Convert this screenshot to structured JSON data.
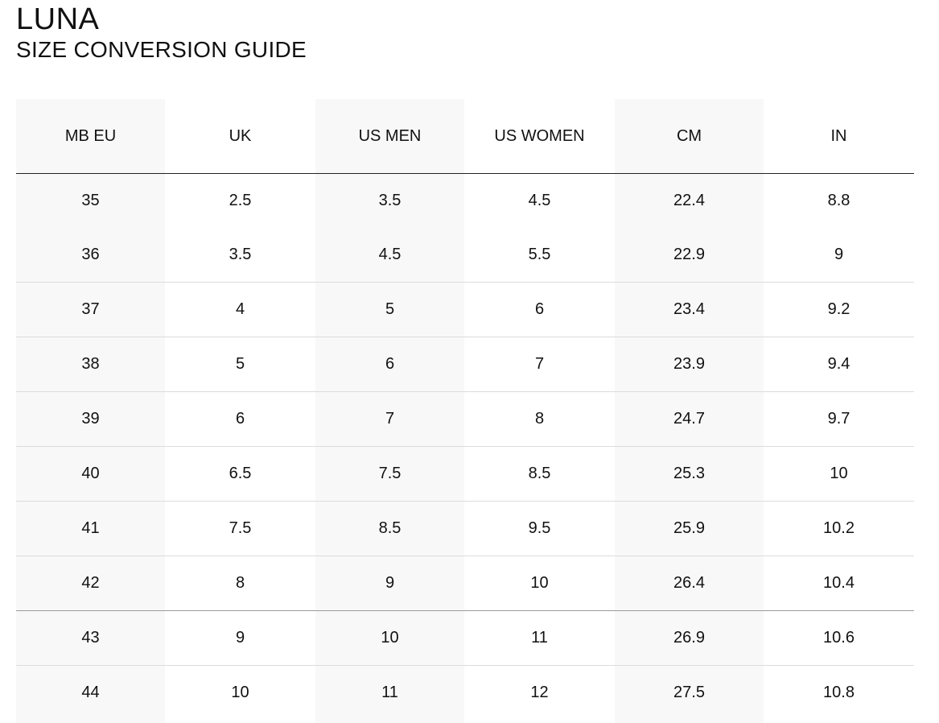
{
  "header": {
    "brand": "LUNA",
    "subtitle": "SIZE CONVERSION GUIDE"
  },
  "table": {
    "columns": [
      "MB EU",
      "UK",
      "US MEN",
      "US WOMEN",
      "CM",
      "IN"
    ],
    "rows": [
      [
        "35",
        "2.5",
        "3.5",
        "4.5",
        "22.4",
        "8.8"
      ],
      [
        "36",
        "3.5",
        "4.5",
        "5.5",
        "22.9",
        "9"
      ],
      [
        "37",
        "4",
        "5",
        "6",
        "23.4",
        "9.2"
      ],
      [
        "38",
        "5",
        "6",
        "7",
        "23.9",
        "9.4"
      ],
      [
        "39",
        "6",
        "7",
        "8",
        "24.7",
        "9.7"
      ],
      [
        "40",
        "6.5",
        "7.5",
        "8.5",
        "25.3",
        "10"
      ],
      [
        "41",
        "7.5",
        "8.5",
        "9.5",
        "25.9",
        "10.2"
      ],
      [
        "42",
        "8",
        "9",
        "10",
        "26.4",
        "10.4"
      ],
      [
        "43",
        "9",
        "10",
        "11",
        "26.9",
        "10.6"
      ],
      [
        "44",
        "10",
        "11",
        "12",
        "27.5",
        "10.8"
      ]
    ]
  },
  "colors": {
    "text": "#111111",
    "shaded_column": "#f8f8f9",
    "header_rule": "#222222",
    "row_rule": "#dcdcdc"
  }
}
